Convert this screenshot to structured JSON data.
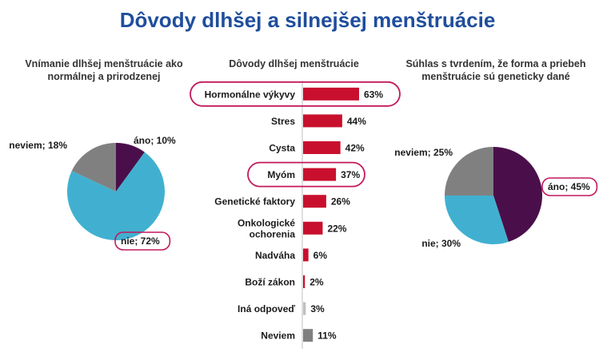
{
  "title": "Dôvody dlhšej a silnejšej menštruácie",
  "colors": {
    "title": "#1f4e9c",
    "highlight": "#c2185b"
  },
  "chart_data": [
    {
      "type": "pie",
      "title": "Vnímanie dlhšej menštruácie ako normálnej a prirodzenej",
      "slices": [
        {
          "label": "áno; 10%",
          "value": 10,
          "color": "#4a0f4a"
        },
        {
          "label": "nie; 72%",
          "value": 72,
          "color": "#41b0d0",
          "highlighted": true
        },
        {
          "label": "neviem; 18%",
          "value": 18,
          "color": "#808080"
        }
      ]
    },
    {
      "type": "bar",
      "orientation": "horizontal",
      "title": "Dôvody dlhšej menštruácie",
      "unit": "%",
      "categories": [
        "Hormonálne výkyvy",
        "Stres",
        "Cysta",
        "Myóm",
        "Genetické faktory",
        "Onkologické ochorenia",
        "Nadváha",
        "Boží zákon",
        "Iná odpoveď",
        "Neviem"
      ],
      "category_lines": [
        [
          "Hormonálne výkyvy"
        ],
        [
          "Stres"
        ],
        [
          "Cysta"
        ],
        [
          "Myóm"
        ],
        [
          "Genetické faktory"
        ],
        [
          "Onkologické",
          "ochorenia"
        ],
        [
          "Nadváha"
        ],
        [
          "Boží zákon"
        ],
        [
          "Iná odpoveď"
        ],
        [
          "Neviem"
        ]
      ],
      "values": [
        63,
        44,
        42,
        37,
        26,
        22,
        6,
        2,
        3,
        11
      ],
      "value_labels": [
        "63%",
        "44%",
        "42%",
        "37%",
        "26%",
        "22%",
        "6%",
        "2%",
        "3%",
        "11%"
      ],
      "bar_colors": [
        "#c8102e",
        "#c8102e",
        "#c8102e",
        "#c8102e",
        "#c8102e",
        "#c8102e",
        "#c8102e",
        "#c8102e",
        "#bfbfbf",
        "#808080"
      ],
      "highlighted": [
        "Hormonálne výkyvy",
        "Myóm"
      ]
    },
    {
      "type": "pie",
      "title": "Súhlas s tvrdením, že forma a priebeh menštruácie sú geneticky dané",
      "slices": [
        {
          "label": "áno; 45%",
          "value": 45,
          "color": "#4a0f4a",
          "highlighted": true
        },
        {
          "label": "nie; 30%",
          "value": 30,
          "color": "#41b0d0"
        },
        {
          "label": "neviem; 25%",
          "value": 25,
          "color": "#808080"
        }
      ]
    }
  ]
}
